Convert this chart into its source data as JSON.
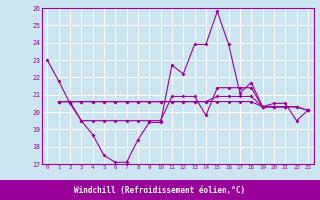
{
  "xlabel": "Windchill (Refroidissement éolien,°C)",
  "background_color": "#cce5f0",
  "grid_color": "#ffffff",
  "line_color": "#990099",
  "border_color": "#990099",
  "xlabel_bg": "#990099",
  "xlabel_fg": "#ffffff",
  "xlim": [
    -0.5,
    23.5
  ],
  "ylim": [
    17,
    26
  ],
  "yticks": [
    17,
    18,
    19,
    20,
    21,
    22,
    23,
    24,
    25,
    26
  ],
  "xticks": [
    0,
    1,
    2,
    3,
    4,
    5,
    6,
    7,
    8,
    9,
    10,
    11,
    12,
    13,
    14,
    15,
    16,
    17,
    18,
    19,
    20,
    21,
    22,
    23
  ],
  "line1_y": [
    23.0,
    21.8,
    20.5,
    19.5,
    18.7,
    17.5,
    17.1,
    17.1,
    18.4,
    19.4,
    19.4,
    22.7,
    22.2,
    23.9,
    23.9,
    25.8,
    23.9,
    21.1,
    21.7,
    20.3,
    20.5,
    20.5,
    19.5,
    20.1
  ],
  "line2_y": [
    null,
    20.6,
    20.6,
    19.5,
    19.5,
    19.5,
    19.5,
    19.5,
    19.5,
    19.5,
    19.5,
    20.9,
    20.9,
    20.9,
    19.8,
    21.4,
    21.4,
    21.4,
    21.4,
    20.3,
    20.3,
    20.3,
    null,
    null
  ],
  "line3_y": [
    null,
    20.6,
    20.6,
    20.6,
    20.6,
    20.6,
    20.6,
    20.6,
    20.6,
    20.6,
    20.6,
    20.6,
    20.6,
    20.6,
    20.6,
    20.9,
    20.9,
    20.9,
    20.9,
    20.3,
    20.3,
    20.3,
    20.3,
    20.1
  ],
  "line4_y": [
    null,
    20.6,
    20.6,
    20.6,
    20.6,
    20.6,
    20.6,
    20.6,
    20.6,
    20.6,
    20.6,
    20.6,
    20.6,
    20.6,
    20.6,
    20.6,
    20.6,
    20.6,
    20.6,
    20.3,
    20.3,
    20.3,
    20.3,
    20.1
  ]
}
